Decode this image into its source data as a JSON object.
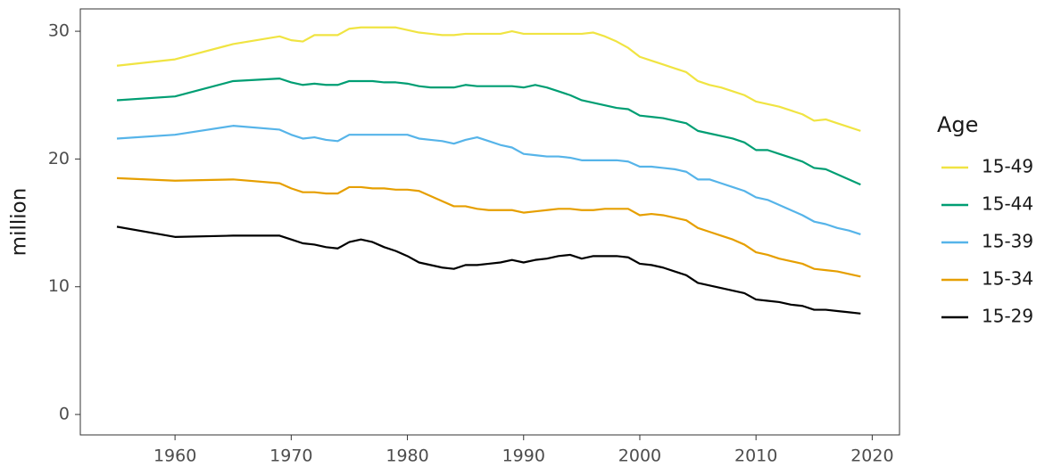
{
  "chart_data": {
    "type": "line",
    "y_label": "million",
    "legend_title": "Age",
    "legend_position": "right",
    "x": [
      1955,
      1960,
      1965,
      1969,
      1970,
      1971,
      1972,
      1973,
      1974,
      1975,
      1976,
      1977,
      1978,
      1979,
      1980,
      1981,
      1982,
      1983,
      1984,
      1985,
      1986,
      1987,
      1988,
      1989,
      1990,
      1991,
      1992,
      1993,
      1994,
      1995,
      1996,
      1997,
      1998,
      1999,
      2000,
      2001,
      2002,
      2003,
      2004,
      2005,
      2006,
      2007,
      2008,
      2009,
      2010,
      2011,
      2012,
      2013,
      2014,
      2015,
      2016,
      2017,
      2018,
      2019
    ],
    "series": [
      {
        "name": "15-49",
        "color": "#f0e442",
        "values": [
          27.3,
          27.8,
          29.0,
          29.6,
          29.3,
          29.2,
          29.7,
          29.7,
          29.7,
          30.2,
          30.3,
          30.3,
          30.3,
          30.3,
          30.1,
          29.9,
          29.8,
          29.7,
          29.7,
          29.8,
          29.8,
          29.8,
          29.8,
          30.0,
          29.8,
          29.8,
          29.8,
          29.8,
          29.8,
          29.8,
          29.9,
          29.6,
          29.2,
          28.7,
          28.0,
          27.7,
          27.4,
          27.1,
          26.8,
          26.1,
          25.8,
          25.6,
          25.3,
          25.0,
          24.5,
          24.3,
          24.1,
          23.8,
          23.5,
          23.0,
          23.1,
          22.8,
          22.5,
          22.2
        ]
      },
      {
        "name": "15-44",
        "color": "#009e73",
        "values": [
          24.6,
          24.9,
          26.1,
          26.3,
          26.0,
          25.8,
          25.9,
          25.8,
          25.8,
          26.1,
          26.1,
          26.1,
          26.0,
          26.0,
          25.9,
          25.7,
          25.6,
          25.6,
          25.6,
          25.8,
          25.7,
          25.7,
          25.7,
          25.7,
          25.6,
          25.8,
          25.6,
          25.3,
          25.0,
          24.6,
          24.4,
          24.2,
          24.0,
          23.9,
          23.4,
          23.3,
          23.2,
          23.0,
          22.8,
          22.2,
          22.0,
          21.8,
          21.6,
          21.3,
          20.7,
          20.7,
          20.4,
          20.1,
          19.8,
          19.3,
          19.2,
          18.8,
          18.4,
          18.0
        ]
      },
      {
        "name": "15-39",
        "color": "#56b4e9",
        "values": [
          21.6,
          21.9,
          22.6,
          22.3,
          21.9,
          21.6,
          21.7,
          21.5,
          21.4,
          21.9,
          21.9,
          21.9,
          21.9,
          21.9,
          21.9,
          21.6,
          21.5,
          21.4,
          21.2,
          21.5,
          21.7,
          21.4,
          21.1,
          20.9,
          20.4,
          20.3,
          20.2,
          20.2,
          20.1,
          19.9,
          19.9,
          19.9,
          19.9,
          19.8,
          19.4,
          19.4,
          19.3,
          19.2,
          19.0,
          18.4,
          18.4,
          18.1,
          17.8,
          17.5,
          17.0,
          16.8,
          16.4,
          16.0,
          15.6,
          15.1,
          14.9,
          14.6,
          14.4,
          14.1
        ]
      },
      {
        "name": "15-34",
        "color": "#e69f00",
        "values": [
          18.5,
          18.3,
          18.4,
          18.1,
          17.7,
          17.4,
          17.4,
          17.3,
          17.3,
          17.8,
          17.8,
          17.7,
          17.7,
          17.6,
          17.6,
          17.5,
          17.1,
          16.7,
          16.3,
          16.3,
          16.1,
          16.0,
          16.0,
          16.0,
          15.8,
          15.9,
          16.0,
          16.1,
          16.1,
          16.0,
          16.0,
          16.1,
          16.1,
          16.1,
          15.6,
          15.7,
          15.6,
          15.4,
          15.2,
          14.6,
          14.3,
          14.0,
          13.7,
          13.3,
          12.7,
          12.5,
          12.2,
          12.0,
          11.8,
          11.4,
          11.3,
          11.2,
          11.0,
          10.8
        ]
      },
      {
        "name": "15-29",
        "color": "#000000",
        "values": [
          14.7,
          13.9,
          14.0,
          14.0,
          13.7,
          13.4,
          13.3,
          13.1,
          13.0,
          13.5,
          13.7,
          13.5,
          13.1,
          12.8,
          12.4,
          11.9,
          11.7,
          11.5,
          11.4,
          11.7,
          11.7,
          11.8,
          11.9,
          12.1,
          11.9,
          12.1,
          12.2,
          12.4,
          12.5,
          12.2,
          12.4,
          12.4,
          12.4,
          12.3,
          11.8,
          11.7,
          11.5,
          11.2,
          10.9,
          10.3,
          10.1,
          9.9,
          9.7,
          9.5,
          9.0,
          8.9,
          8.8,
          8.6,
          8.5,
          8.2,
          8.2,
          8.1,
          8.0,
          7.9
        ]
      }
    ],
    "xlim": [
      1951.85,
      2022.35
    ],
    "xticks": [
      1960,
      1970,
      1980,
      1990,
      2000,
      2010,
      2020
    ],
    "ylim": [
      -1.6,
      31.75
    ],
    "yticks": [
      0,
      10,
      20,
      30
    ],
    "grid": false
  }
}
